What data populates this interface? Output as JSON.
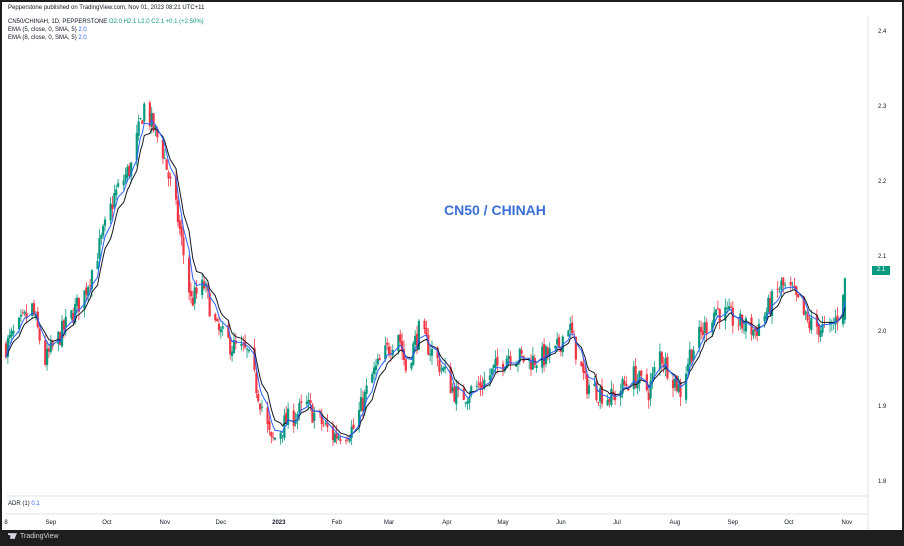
{
  "publisher_line": "Pepperstone published on TradingView.com, Nov 01, 2023 08:21 UTC+11",
  "legend": {
    "symbol": "CN50/CHINAH, 1D, PEPPERSTONE",
    "ohlc": "O2.0 H2.1 L2.0 C2.1 +0.1 (+2.50%)",
    "ema5_label": "EMA (5, close, 0, SMA, 5)",
    "ema5_value": "2.0",
    "ema8_label": "EMA (8, close, 0, SMA, 5)",
    "ema8_value": "2.0"
  },
  "adr": {
    "label": "ADR (1)",
    "value": "0.1"
  },
  "footer": {
    "brand": "TradingView"
  },
  "colors": {
    "up": "#089981",
    "down": "#f23645",
    "ema5": "#2962ff",
    "ema8": "#131722",
    "title": "#3b6fd8"
  },
  "chart_data": {
    "type": "candlestick",
    "title": "CN50 / CHINAH",
    "ylim": [
      1.78,
      2.42
    ],
    "y_ticks": [
      "2.4",
      "2.3",
      "2.2",
      "2.1",
      "2.0",
      "1.9",
      "1.8"
    ],
    "x_ticks": [
      "8",
      "Sep",
      "Oct",
      "Nov",
      "Dec",
      "2023",
      "Feb",
      "Mar",
      "Apr",
      "May",
      "Jun",
      "Jul",
      "Aug",
      "Sep",
      "Oct",
      "Nov"
    ],
    "last_price_label": "2.1",
    "trend": [
      [
        "2022-08-08",
        1.98
      ],
      [
        "2022-08-22",
        2.03
      ],
      [
        "2022-08-29",
        1.96
      ],
      [
        "2022-09-05",
        1.99
      ],
      [
        "2022-09-19",
        2.05
      ],
      [
        "2022-09-28",
        2.12
      ],
      [
        "2022-10-05",
        2.18
      ],
      [
        "2022-10-14",
        2.22
      ],
      [
        "2022-10-21",
        2.3
      ],
      [
        "2022-10-31",
        2.24
      ],
      [
        "2022-11-08",
        2.15
      ],
      [
        "2022-11-15",
        2.04
      ],
      [
        "2022-11-22",
        2.06
      ],
      [
        "2022-11-29",
        2.0
      ],
      [
        "2022-12-07",
        1.98
      ],
      [
        "2022-12-15",
        1.97
      ],
      [
        "2022-12-23",
        1.9
      ],
      [
        "2022-12-28",
        1.85
      ],
      [
        "2023-01-05",
        1.88
      ],
      [
        "2023-01-16",
        1.9
      ],
      [
        "2023-01-30",
        1.86
      ],
      [
        "2023-02-10",
        1.87
      ],
      [
        "2023-02-20",
        1.94
      ],
      [
        "2023-03-06",
        2.0
      ],
      [
        "2023-03-10",
        1.95
      ],
      [
        "2023-03-17",
        2.0
      ],
      [
        "2023-03-27",
        1.96
      ],
      [
        "2023-04-07",
        1.91
      ],
      [
        "2023-04-20",
        1.93
      ],
      [
        "2023-05-04",
        1.97
      ],
      [
        "2023-05-15",
        1.96
      ],
      [
        "2023-05-29",
        1.97
      ],
      [
        "2023-06-05",
        2.01
      ],
      [
        "2023-06-14",
        1.93
      ],
      [
        "2023-06-28",
        1.91
      ],
      [
        "2023-07-10",
        1.94
      ],
      [
        "2023-07-18",
        1.92
      ],
      [
        "2023-07-24",
        1.97
      ],
      [
        "2023-08-04",
        1.92
      ],
      [
        "2023-08-09",
        1.97
      ],
      [
        "2023-08-23",
        2.03
      ],
      [
        "2023-09-04",
        2.01
      ],
      [
        "2023-09-13",
        2.0
      ],
      [
        "2023-09-27",
        2.06
      ],
      [
        "2023-10-03",
        2.05
      ],
      [
        "2023-10-11",
        2.01
      ],
      [
        "2023-10-23",
        2.0
      ],
      [
        "2023-10-27",
        2.02
      ],
      [
        "2023-10-31",
        2.07
      ]
    ]
  }
}
